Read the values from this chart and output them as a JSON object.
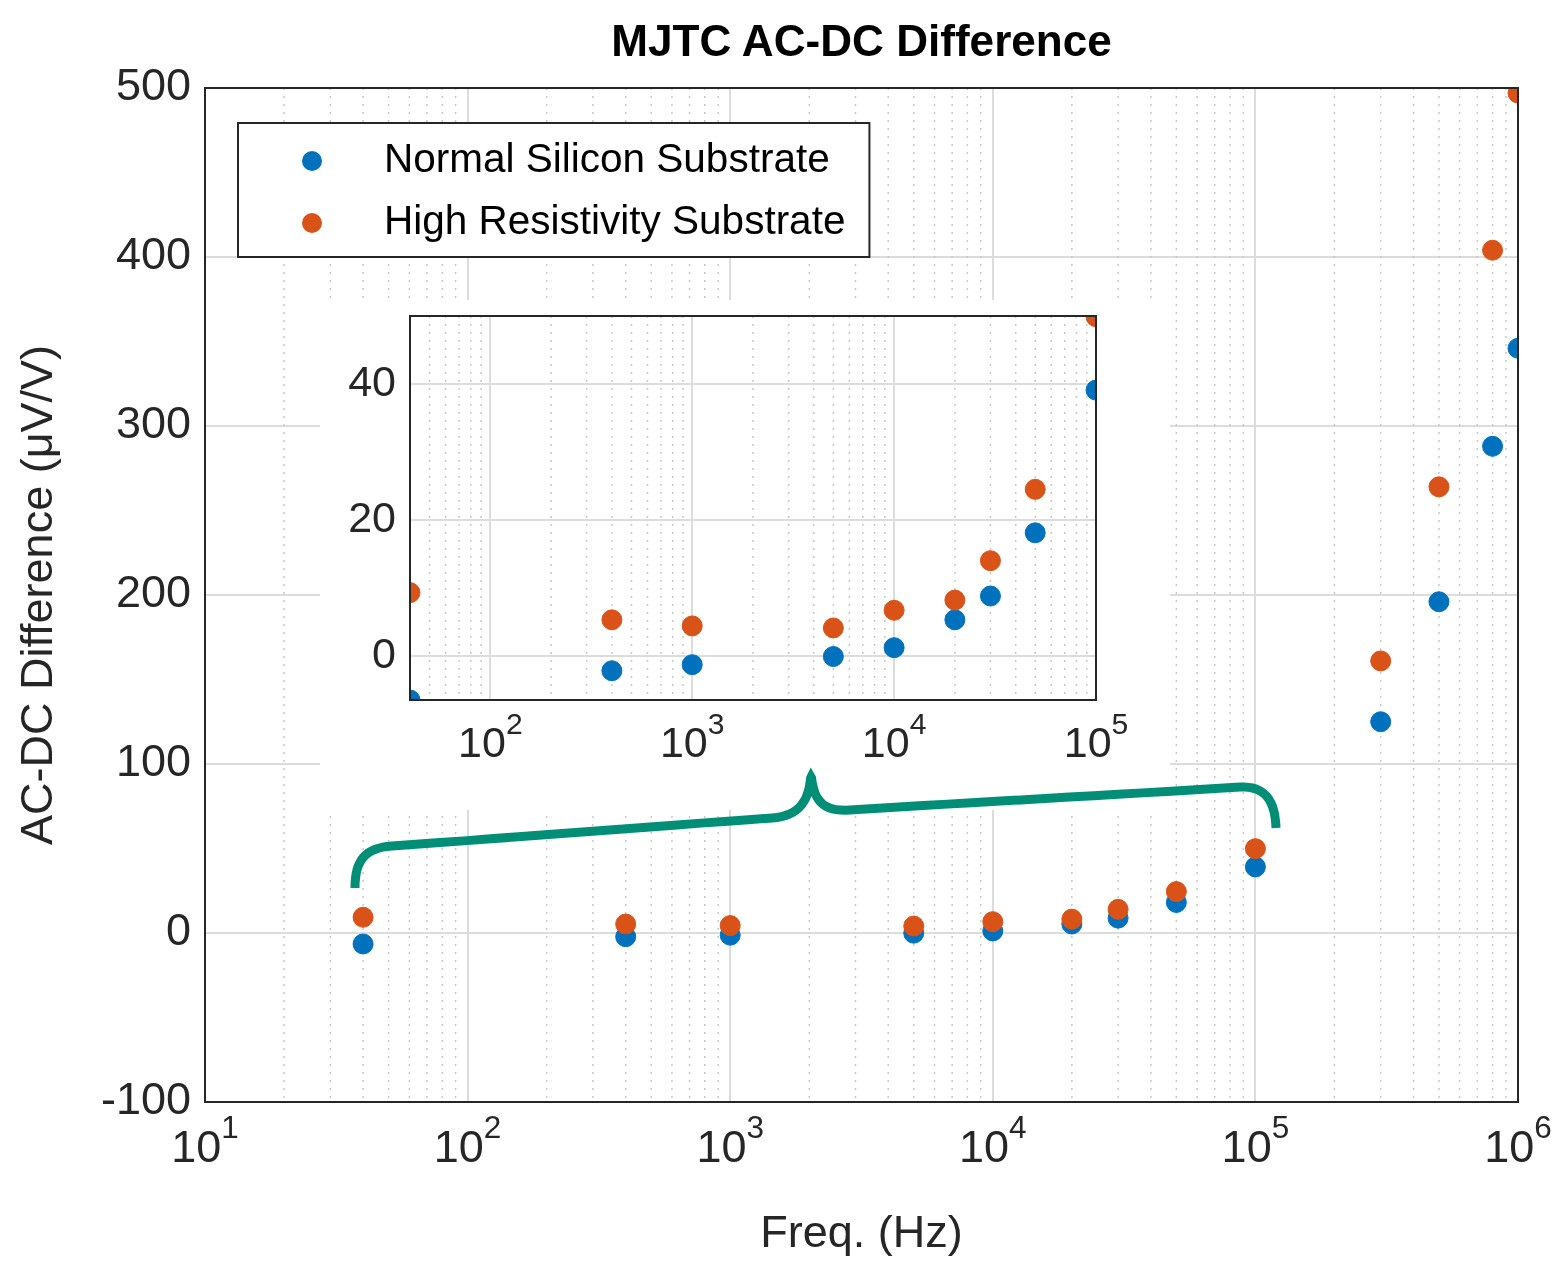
{
  "chart_data": [
    {
      "type": "scatter",
      "title": "MJTC AC-DC Difference",
      "xlabel": "Freq. (Hz)",
      "ylabel": "AC-DC Difference (μV/V)",
      "x": [
        40,
        400,
        1000,
        5000,
        10000,
        20000,
        30000,
        50000,
        100000,
        300000,
        500000,
        800000,
        1000000
      ],
      "series": [
        {
          "name": "Normal Silicon Substrate",
          "color": "#0072bd",
          "values": [
            -6.5,
            -2.2,
            -1.3,
            -0.1,
            1.2,
            5.3,
            8.8,
            18.1,
            39.1,
            125,
            196,
            288,
            346
          ]
        },
        {
          "name": "High Resistivity Substrate",
          "color": "#d95319",
          "values": [
            9.3,
            5.3,
            4.4,
            4.1,
            6.7,
            8.2,
            14,
            24.5,
            49.9,
            161,
            264,
            404,
            497
          ]
        }
      ],
      "xlim": [
        10,
        1000000
      ],
      "ylim": [
        -100,
        500
      ],
      "xticks": [
        {
          "value": 10,
          "label": "10$^{1}$"
        },
        {
          "value": 100,
          "label": "10$^{2}$"
        },
        {
          "value": 1000,
          "label": "10$^{3}$"
        },
        {
          "value": 10000,
          "label": "10$^{4}$"
        },
        {
          "value": 100000,
          "label": "10$^{5}$"
        },
        {
          "value": 1000000,
          "label": "10$^{6}$"
        }
      ],
      "yticks": [
        -100,
        0,
        100,
        200,
        300,
        400,
        500
      ],
      "log": "x",
      "grid": true,
      "legend": "top left",
      "marker": "circle"
    },
    {
      "type": "scatter",
      "x": [
        40,
        400,
        1000,
        5000,
        10000,
        20000,
        30000,
        50000,
        100000
      ],
      "series": [
        {
          "color": "#0072bd",
          "values": [
            -6.5,
            -2.2,
            -1.3,
            -0.1,
            1.2,
            5.3,
            8.8,
            18.1,
            39.1
          ]
        },
        {
          "color": "#d95319",
          "values": [
            9.3,
            5.3,
            4.4,
            4.1,
            6.7,
            8.2,
            14,
            24.5,
            49.9
          ]
        }
      ],
      "xlim": [
        40,
        100000
      ],
      "ylim": [
        -6.5,
        50
      ],
      "xticks": [
        {
          "value": 100,
          "label": "10$^{2}$"
        },
        {
          "value": 1000,
          "label": "10$^{3}$"
        },
        {
          "value": 10000,
          "label": "10$^{4}$"
        },
        {
          "value": 100000,
          "label": "10$^{5}$"
        }
      ],
      "yticks": [
        0,
        20,
        40
      ],
      "log": "x",
      "grid": true,
      "marker": "circle"
    }
  ]
}
